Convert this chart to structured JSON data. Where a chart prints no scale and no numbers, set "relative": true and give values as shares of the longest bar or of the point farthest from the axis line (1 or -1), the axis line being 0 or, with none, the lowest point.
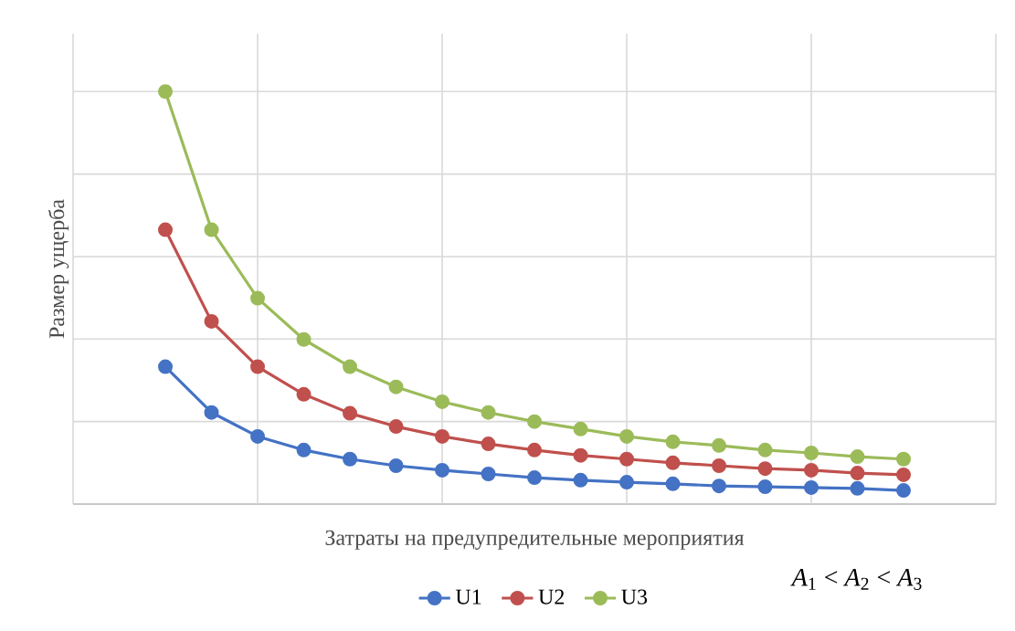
{
  "chart_data": {
    "type": "line",
    "relative": true,
    "xlabel": "Затраты на предупредительные мероприятия",
    "ylabel": "Размер ущерба",
    "categories": [
      null,
      null,
      null,
      null,
      null,
      null,
      null,
      null,
      null,
      null,
      null,
      null,
      null,
      null,
      null,
      null,
      null
    ],
    "grid": true,
    "legend": "bottom",
    "marker": "circle",
    "line_style": "solid",
    "series": [
      {
        "name": "U1",
        "color": "#4472c4",
        "values": [
          0.333,
          0.222,
          0.164,
          0.131,
          0.109,
          0.093,
          0.082,
          0.073,
          0.064,
          0.058,
          0.053,
          0.049,
          0.044,
          0.042,
          0.04,
          0.038,
          0.033
        ]
      },
      {
        "name": "U2",
        "color": "#c0504d",
        "values": [
          0.665,
          0.443,
          0.333,
          0.266,
          0.22,
          0.188,
          0.164,
          0.146,
          0.131,
          0.118,
          0.109,
          0.1,
          0.093,
          0.086,
          0.082,
          0.075,
          0.071
        ]
      },
      {
        "name": "U3",
        "color": "#9bbb59",
        "values": [
          1,
          0.665,
          0.499,
          0.399,
          0.333,
          0.284,
          0.248,
          0.222,
          0.2,
          0.182,
          0.164,
          0.151,
          0.142,
          0.131,
          0.124,
          0.115,
          0.109
        ]
      }
    ],
    "annotations": [
      "*A*$_{1}$ < *A*$_{2}$ < *A*$_{3}$"
    ]
  }
}
